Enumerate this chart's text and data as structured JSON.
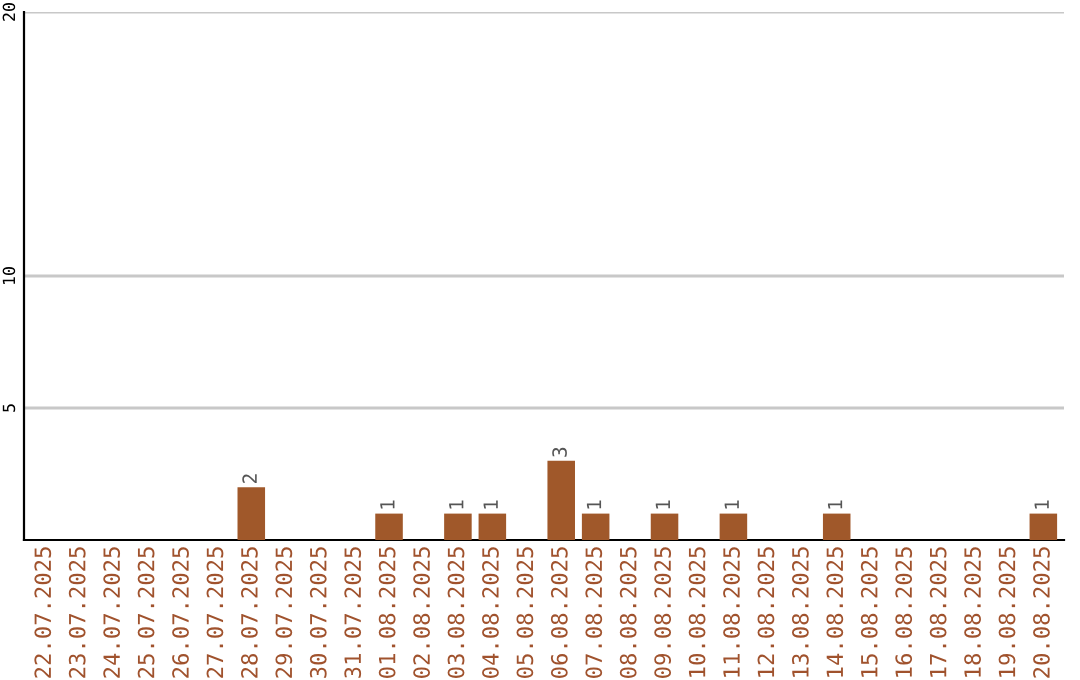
{
  "chart_data": {
    "type": "bar",
    "categories": [
      "22.07.2025",
      "23.07.2025",
      "24.07.2025",
      "25.07.2025",
      "26.07.2025",
      "27.07.2025",
      "28.07.2025",
      "29.07.2025",
      "30.07.2025",
      "31.07.2025",
      "01.08.2025",
      "02.08.2025",
      "03.08.2025",
      "04.08.2025",
      "05.08.2025",
      "06.08.2025",
      "07.08.2025",
      "08.08.2025",
      "09.08.2025",
      "10.08.2025",
      "11.08.2025",
      "12.08.2025",
      "13.08.2025",
      "14.08.2025",
      "15.08.2025",
      "16.08.2025",
      "17.08.2025",
      "18.08.2025",
      "19.08.2025",
      "20.08.2025"
    ],
    "values": [
      0,
      0,
      0,
      0,
      0,
      0,
      2,
      0,
      0,
      0,
      1,
      0,
      1,
      1,
      0,
      3,
      1,
      0,
      1,
      0,
      1,
      0,
      0,
      1,
      0,
      0,
      0,
      0,
      0,
      1
    ],
    "value_labels": [
      null,
      null,
      null,
      null,
      null,
      null,
      "2",
      null,
      null,
      null,
      "1",
      null,
      "1",
      "1",
      null,
      "3",
      "1",
      null,
      "1",
      null,
      "1",
      null,
      null,
      "1",
      null,
      null,
      null,
      null,
      null,
      "1"
    ],
    "color": "#a0582a",
    "ylim": [
      0,
      20
    ],
    "yticks": [
      5,
      10,
      20
    ],
    "grid": "y"
  }
}
